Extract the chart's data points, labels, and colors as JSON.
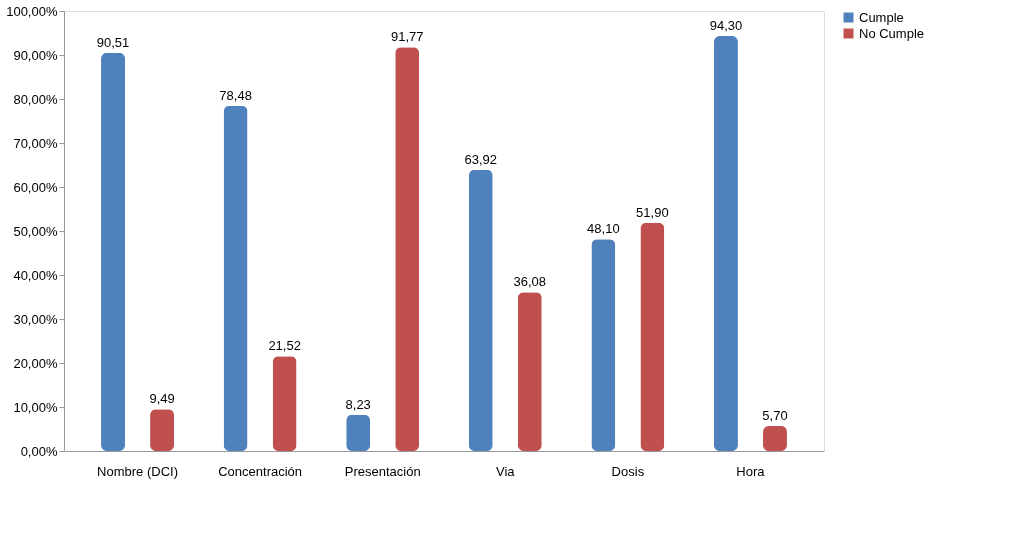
{
  "chart_data": {
    "type": "bar",
    "categories": [
      "Nombre (DCI)",
      "Concentración",
      "Presentación",
      "Via",
      "Dosis",
      "Hora"
    ],
    "series": [
      {
        "name": "Cumple",
        "color": "#4f81bd",
        "values": [
          90.51,
          78.48,
          8.23,
          63.92,
          48.1,
          94.3
        ],
        "value_labels": [
          "90,51",
          "78,48",
          "8,23",
          "63,92",
          "48,10",
          "94,30"
        ]
      },
      {
        "name": "No Cumple",
        "color": "#c0504d",
        "values": [
          9.49,
          21.52,
          91.77,
          36.08,
          51.9,
          5.7
        ],
        "value_labels": [
          "9,49",
          "21,52",
          "91,77",
          "36,08",
          "51,90",
          "5,70"
        ]
      }
    ],
    "ylim": [
      0,
      100
    ],
    "yticks": [
      {
        "value": 0,
        "label": "0,00%"
      },
      {
        "value": 10,
        "label": "10,00%"
      },
      {
        "value": 20,
        "label": "20,00%"
      },
      {
        "value": 30,
        "label": "30,00%"
      },
      {
        "value": 40,
        "label": "40,00%"
      },
      {
        "value": 50,
        "label": "50,00%"
      },
      {
        "value": 60,
        "label": "60,00%"
      },
      {
        "value": 70,
        "label": "70,00%"
      },
      {
        "value": 80,
        "label": "80,00%"
      },
      {
        "value": 90,
        "label": "90,00%"
      },
      {
        "value": 100,
        "label": "100,00%"
      }
    ],
    "grid": false,
    "legend": "right"
  }
}
